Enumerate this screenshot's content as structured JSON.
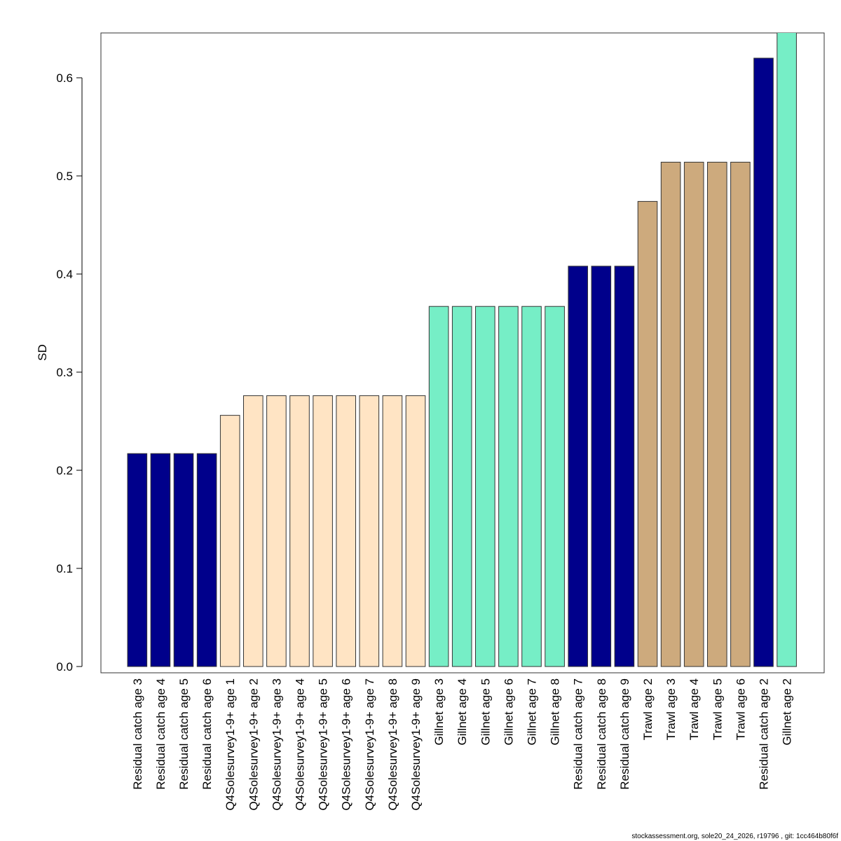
{
  "chart_data": {
    "type": "bar",
    "y_label": "SD",
    "footer": "stockassessment.org, sole20_24_2026, r19796 , git: 1cc464b80f6f",
    "categories": [
      "Residual catch age 3",
      "Residual catch age 4",
      "Residual catch age 5",
      "Residual catch age 6",
      "Q4Solesurvey1-9+ age 1",
      "Q4Solesurvey1-9+ age 2",
      "Q4Solesurvey1-9+ age 3",
      "Q4Solesurvey1-9+ age 4",
      "Q4Solesurvey1-9+ age 5",
      "Q4Solesurvey1-9+ age 6",
      "Q4Solesurvey1-9+ age 7",
      "Q4Solesurvey1-9+ age 8",
      "Q4Solesurvey1-9+ age 9",
      "Gillnet age 3",
      "Gillnet age 4",
      "Gillnet age 5",
      "Gillnet age 6",
      "Gillnet age 7",
      "Gillnet age 8",
      "Residual catch age 7",
      "Residual catch age 8",
      "Residual catch age 9",
      "Trawl age 2",
      "Trawl age 3",
      "Trawl age 4",
      "Trawl age 5",
      "Trawl age 6",
      "Residual catch age 2",
      "Gillnet age 2"
    ],
    "values": [
      0.217,
      0.217,
      0.217,
      0.217,
      0.256,
      0.276,
      0.276,
      0.276,
      0.276,
      0.276,
      0.276,
      0.276,
      0.276,
      0.367,
      0.367,
      0.367,
      0.367,
      0.367,
      0.367,
      0.408,
      0.408,
      0.408,
      0.474,
      0.514,
      0.514,
      0.514,
      0.514,
      0.62,
      0.65
    ],
    "colors": [
      "#00008b",
      "#00008b",
      "#00008b",
      "#00008b",
      "#ffe4c4",
      "#ffe4c4",
      "#ffe4c4",
      "#ffe4c4",
      "#ffe4c4",
      "#ffe4c4",
      "#ffe4c4",
      "#ffe4c4",
      "#ffe4c4",
      "#76eec6",
      "#76eec6",
      "#76eec6",
      "#76eec6",
      "#76eec6",
      "#76eec6",
      "#00008b",
      "#00008b",
      "#00008b",
      "#cdaa7d",
      "#cdaa7d",
      "#cdaa7d",
      "#cdaa7d",
      "#cdaa7d",
      "#00008b",
      "#76eec6"
    ],
    "ylim": [
      -0.0064,
      0.6457
    ],
    "yticks": [
      {
        "value": 0,
        "label": "0.0"
      },
      0.1,
      0.2,
      0.3,
      0.4,
      0.5,
      0.6
    ]
  }
}
